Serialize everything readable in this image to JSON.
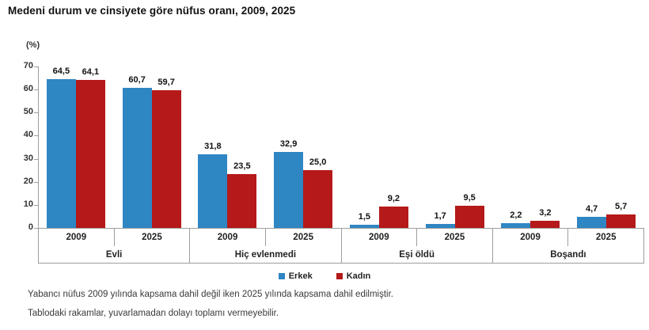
{
  "title": "Medeni durum ve cinsiyete göre nüfus oranı, 2009, 2025",
  "footnotes": [
    "Yabancı nüfus 2009 yılında kapsama dahil değil iken 2025 yılında kapsama dahil edilmiştir.",
    "Tablodaki rakamlar, yuvarlamadan dolayı toplamı vermeyebilir."
  ],
  "legend": {
    "items": [
      {
        "label": "Erkek",
        "color": "#2e86c3"
      },
      {
        "label": "Kadın",
        "color": "#b51919"
      }
    ]
  },
  "chart_data": {
    "type": "bar",
    "title": "Medeni durum ve cinsiyete göre nüfus oranı, 2009, 2025",
    "xlabel": "",
    "ylabel": "(%)",
    "ylim": [
      0,
      70
    ],
    "yticks": [
      0,
      10,
      20,
      30,
      40,
      50,
      60,
      70
    ],
    "grid": false,
    "legend_position": "bottom",
    "decimal_separator": ",",
    "categories": [
      "Evli",
      "Hiç evlenmedi",
      "Eşi öldü",
      "Boşandı"
    ],
    "subcategories": [
      "2009",
      "2025"
    ],
    "series": [
      {
        "name": "Erkek",
        "color": "#2e86c3",
        "values": [
          [
            64.5,
            60.7
          ],
          [
            31.8,
            32.9
          ],
          [
            1.5,
            1.7
          ],
          [
            2.2,
            4.7
          ]
        ]
      },
      {
        "name": "Kadın",
        "color": "#b51919",
        "values": [
          [
            64.1,
            59.7
          ],
          [
            23.5,
            25.0
          ],
          [
            9.2,
            9.5
          ],
          [
            3.2,
            5.7
          ]
        ]
      }
    ]
  },
  "colors": {
    "axis": "#9e9e9e"
  }
}
